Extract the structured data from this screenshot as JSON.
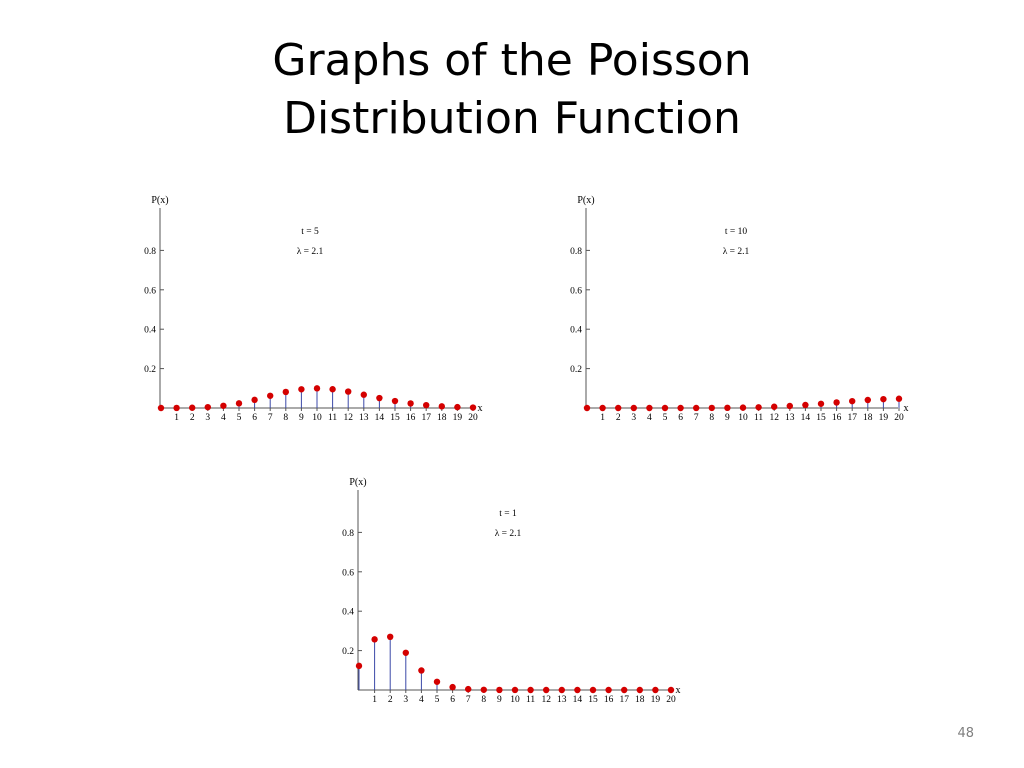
{
  "slide": {
    "title_line1": "Graphs of the Poisson",
    "title_line2": "Distribution Function",
    "page_number": "48"
  },
  "colors": {
    "point": "#d40000",
    "stem": "#3b49a8",
    "axis": "#555555",
    "text": "#000000"
  },
  "chart_data": [
    {
      "type": "scatter",
      "style": "stem",
      "title": "",
      "xlabel": "x",
      "ylabel": "P(x)",
      "annotations": [
        "t = 5",
        "λ = 2.1"
      ],
      "xlim": [
        0,
        20
      ],
      "ylim": [
        0,
        1
      ],
      "x_ticks": [
        1,
        2,
        3,
        4,
        5,
        6,
        7,
        8,
        9,
        10,
        11,
        12,
        13,
        14,
        15,
        16,
        17,
        18,
        19,
        20
      ],
      "y_ticks": [
        0.2,
        0.4,
        0.6,
        0.8
      ],
      "y_tick_labels": [
        "0.2",
        "0.4",
        "0.6",
        "0.8"
      ],
      "grid": false,
      "x": [
        0,
        1,
        2,
        3,
        4,
        5,
        6,
        7,
        8,
        9,
        10,
        11,
        12,
        13,
        14,
        15,
        16,
        17,
        18,
        19,
        20
      ],
      "y": [
        3e-05,
        0.0003,
        0.0014,
        0.0043,
        0.0113,
        0.0237,
        0.0414,
        0.062,
        0.0815,
        0.0951,
        0.0998,
        0.0953,
        0.0834,
        0.0674,
        0.0505,
        0.0354,
        0.0232,
        0.0144,
        0.0084,
        0.0046,
        0.0024
      ]
    },
    {
      "type": "scatter",
      "style": "stem",
      "title": "",
      "xlabel": "x",
      "ylabel": "P(x)",
      "annotations": [
        "t = 10",
        "λ = 2.1"
      ],
      "xlim": [
        0,
        20
      ],
      "ylim": [
        0,
        1
      ],
      "x_ticks": [
        1,
        2,
        3,
        4,
        5,
        6,
        7,
        8,
        9,
        10,
        11,
        12,
        13,
        14,
        15,
        16,
        17,
        18,
        19,
        20
      ],
      "y_ticks": [
        0.2,
        0.4,
        0.6,
        0.8
      ],
      "y_tick_labels": [
        "0.2",
        "0.4",
        "0.6",
        "0.8"
      ],
      "grid": false,
      "x": [
        0,
        1,
        2,
        3,
        4,
        5,
        6,
        7,
        8,
        9,
        10,
        11,
        12,
        13,
        14,
        15,
        16,
        17,
        18,
        19,
        20
      ],
      "y": [
        0,
        0,
        0,
        0,
        0,
        0,
        0,
        0.0001,
        0.0004,
        0.0009,
        0.0019,
        0.0036,
        0.0063,
        0.0102,
        0.0153,
        0.0215,
        0.0282,
        0.0348,
        0.0406,
        0.0448,
        0.0471
      ]
    },
    {
      "type": "scatter",
      "style": "stem",
      "title": "",
      "xlabel": "x",
      "ylabel": "P(x)",
      "annotations": [
        "t = 1",
        "λ = 2.1"
      ],
      "xlim": [
        0,
        20
      ],
      "ylim": [
        0,
        1
      ],
      "x_ticks": [
        1,
        2,
        3,
        4,
        5,
        6,
        7,
        8,
        9,
        10,
        11,
        12,
        13,
        14,
        15,
        16,
        17,
        18,
        19,
        20
      ],
      "y_ticks": [
        0.2,
        0.4,
        0.6,
        0.8
      ],
      "y_tick_labels": [
        "0.2",
        "0.4",
        "0.6",
        "0.8"
      ],
      "grid": false,
      "x": [
        0,
        1,
        2,
        3,
        4,
        5,
        6,
        7,
        8,
        9,
        10,
        11,
        12,
        13,
        14,
        15,
        16,
        17,
        18,
        19,
        20
      ],
      "y": [
        0.1225,
        0.2572,
        0.27,
        0.189,
        0.0992,
        0.0417,
        0.0146,
        0.0044,
        0.0011,
        0.0003,
        0.0001,
        0,
        0,
        0,
        0,
        0,
        0,
        0,
        0,
        0,
        0
      ]
    }
  ]
}
